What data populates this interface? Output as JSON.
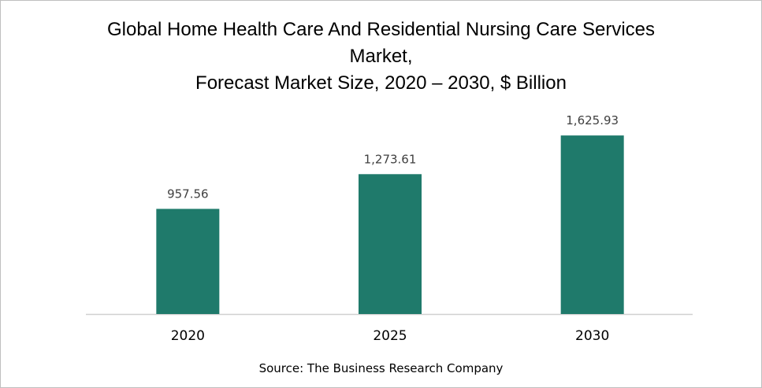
{
  "chart_data": {
    "type": "bar",
    "title_lines": [
      "Global Home Health Care And Residential Nursing Care Services",
      "Market,",
      "Forecast Market Size, 2020 – 2030, $ Billion"
    ],
    "categories": [
      "2020",
      "2025",
      "2030"
    ],
    "values": [
      957.56,
      1273.61,
      1625.93
    ],
    "data_labels": [
      "957.56",
      "1,273.61",
      "1,625.93"
    ],
    "xlabel": "",
    "ylabel": "",
    "ylim": [
      0,
      1720
    ],
    "grid": false,
    "bar_color": "#1f7a6b",
    "source": "Source: The Business Research Company"
  }
}
